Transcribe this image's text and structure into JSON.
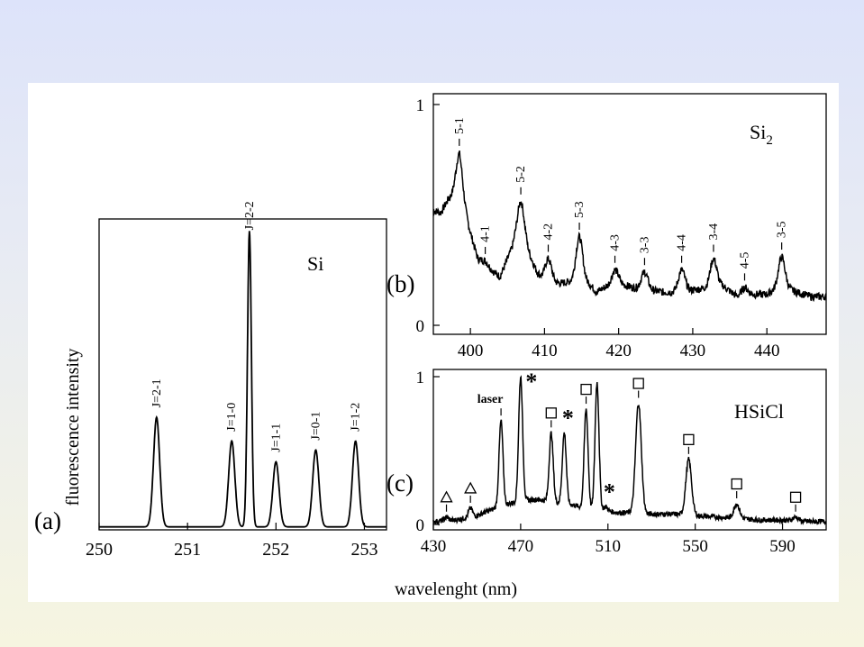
{
  "chart_data": [
    {
      "type": "line",
      "panel_label": "(a)",
      "species_label": "Si",
      "xlabel": "wavelenght (nm)",
      "ylabel": "fluorescence intensity",
      "xlim": [
        250,
        253.25
      ],
      "ylim": [
        0,
        1.05
      ],
      "x_ticks": [
        "250",
        "251",
        "252",
        "253"
      ],
      "x_tick_values": [
        250,
        251,
        252,
        253
      ],
      "peaks": [
        {
          "label": "J=2-1",
          "x": 250.65,
          "y": 0.37
        },
        {
          "label": "J=1-0",
          "x": 251.5,
          "y": 0.29
        },
        {
          "label": "J=2-2",
          "x": 251.7,
          "y": 1.0
        },
        {
          "label": "J=1-1",
          "x": 252.0,
          "y": 0.22
        },
        {
          "label": "J=0-1",
          "x": 252.45,
          "y": 0.26
        },
        {
          "label": "J=1-2",
          "x": 252.9,
          "y": 0.29
        }
      ]
    },
    {
      "type": "line",
      "panel_label": "(b)",
      "species_label": "Si",
      "species_subscript": "2",
      "xlim": [
        395,
        448
      ],
      "ylim": [
        0,
        1
      ],
      "x_ticks": [
        "400",
        "410",
        "420",
        "430",
        "440"
      ],
      "x_tick_values": [
        400,
        410,
        420,
        430,
        440
      ],
      "y_ticks": [
        "0",
        "1"
      ],
      "y_tick_values": [
        0,
        1
      ],
      "baseline": [
        [
          395,
          0.52
        ],
        [
          396,
          0.51
        ],
        [
          397,
          0.57
        ],
        [
          398.5,
          0.62
        ],
        [
          400,
          0.42
        ],
        [
          401,
          0.3
        ],
        [
          402,
          0.27
        ],
        [
          404,
          0.22
        ],
        [
          405,
          0.3
        ],
        [
          406,
          0.38
        ],
        [
          407.5,
          0.36
        ],
        [
          409,
          0.24
        ],
        [
          410,
          0.2
        ],
        [
          412,
          0.19
        ],
        [
          414,
          0.2
        ],
        [
          416,
          0.19
        ],
        [
          417,
          0.15
        ],
        [
          418,
          0.17
        ],
        [
          420,
          0.19
        ],
        [
          422,
          0.17
        ],
        [
          424,
          0.16
        ],
        [
          426,
          0.15
        ],
        [
          428,
          0.15
        ],
        [
          430,
          0.16
        ],
        [
          432,
          0.17
        ],
        [
          434,
          0.18
        ],
        [
          436,
          0.13
        ],
        [
          438,
          0.14
        ],
        [
          440,
          0.14
        ],
        [
          442,
          0.18
        ],
        [
          444,
          0.15
        ],
        [
          446,
          0.13
        ],
        [
          448,
          0.13
        ]
      ],
      "bands": [
        {
          "label": "5-1",
          "x": 398.5,
          "peak": 0.78
        },
        {
          "label": "4-1",
          "x": 402.0,
          "peak": 0.29
        },
        {
          "label": "5-2",
          "x": 406.8,
          "peak": 0.56
        },
        {
          "label": "4-2",
          "x": 410.5,
          "peak": 0.3
        },
        {
          "label": "5-3",
          "x": 414.7,
          "peak": 0.4
        },
        {
          "label": "4-3",
          "x": 419.5,
          "peak": 0.25
        },
        {
          "label": "3-3",
          "x": 423.5,
          "peak": 0.24
        },
        {
          "label": "4-4",
          "x": 428.5,
          "peak": 0.25
        },
        {
          "label": "3-4",
          "x": 432.8,
          "peak": 0.3
        },
        {
          "label": "4-5",
          "x": 437.0,
          "peak": 0.17
        },
        {
          "label": "3-5",
          "x": 442.0,
          "peak": 0.31
        }
      ]
    },
    {
      "type": "line",
      "panel_label": "(c)",
      "species_label": "HSiCl",
      "xlim": [
        430,
        610
      ],
      "ylim": [
        0,
        1
      ],
      "x_ticks": [
        "430",
        "470",
        "510",
        "550",
        "590"
      ],
      "x_tick_values": [
        430,
        470,
        510,
        550,
        590
      ],
      "y_ticks": [
        "0",
        "1"
      ],
      "y_tick_values": [
        0,
        1
      ],
      "laser_label": "laser",
      "baseline": [
        [
          430,
          0.02
        ],
        [
          440,
          0.03
        ],
        [
          450,
          0.06
        ],
        [
          460,
          0.12
        ],
        [
          470,
          0.16
        ],
        [
          478,
          0.17
        ],
        [
          485,
          0.15
        ],
        [
          495,
          0.13
        ],
        [
          500,
          0.1
        ],
        [
          505,
          0.1
        ],
        [
          510,
          0.09
        ],
        [
          515,
          0.08
        ],
        [
          520,
          0.08
        ],
        [
          530,
          0.07
        ],
        [
          540,
          0.07
        ],
        [
          550,
          0.06
        ],
        [
          560,
          0.05
        ],
        [
          570,
          0.04
        ],
        [
          580,
          0.03
        ],
        [
          590,
          0.03
        ],
        [
          600,
          0.02
        ],
        [
          610,
          0.02
        ]
      ],
      "peaks": [
        {
          "x": 436.0,
          "y": 0.05,
          "marker": "triangle"
        },
        {
          "x": 447.0,
          "y": 0.11,
          "marker": "triangle"
        },
        {
          "x": 461.0,
          "y": 0.7,
          "marker": "laser"
        },
        {
          "x": 470.0,
          "y": 1.0,
          "marker": "star"
        },
        {
          "x": 484.0,
          "y": 0.62,
          "marker": "square"
        },
        {
          "x": 490.0,
          "y": 0.62,
          "marker": "star"
        },
        {
          "x": 500.0,
          "y": 0.78,
          "marker": "square"
        },
        {
          "x": 505.0,
          "y": 0.96,
          "marker": "none"
        },
        {
          "x": 509.0,
          "y": 0.12,
          "marker": "star"
        },
        {
          "x": 524.0,
          "y": 0.82,
          "marker": "square"
        },
        {
          "x": 547.0,
          "y": 0.44,
          "marker": "square"
        },
        {
          "x": 569.0,
          "y": 0.14,
          "marker": "square"
        },
        {
          "x": 596.0,
          "y": 0.05,
          "marker": "square"
        }
      ]
    }
  ]
}
